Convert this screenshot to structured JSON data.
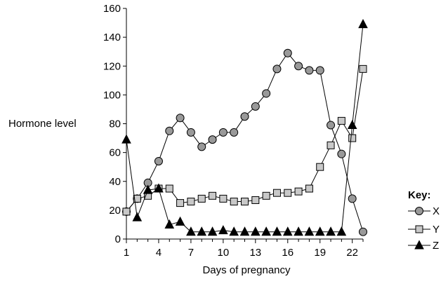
{
  "chart_data": {
    "type": "line",
    "xlabel": "Days of pregnancy",
    "ylabel": "Hormone level",
    "xlim": [
      1,
      23
    ],
    "ylim": [
      0,
      160
    ],
    "xticks": [
      1,
      4,
      7,
      10,
      13,
      16,
      19,
      22
    ],
    "yticks": [
      0,
      20,
      40,
      60,
      80,
      100,
      120,
      140,
      160
    ],
    "grid": false,
    "legend": {
      "title": "Key:",
      "placement": "bottom-right"
    },
    "series": [
      {
        "name": "X",
        "marker": "circle",
        "color": "#999999",
        "x": [
          1,
          2,
          3,
          4,
          5,
          6,
          7,
          8,
          9,
          10,
          11,
          12,
          13,
          14,
          15,
          16,
          17,
          18,
          19,
          20,
          21,
          22,
          23
        ],
        "y": [
          19,
          28,
          39,
          54,
          75,
          84,
          74,
          64,
          69,
          74,
          74,
          85,
          92,
          101,
          118,
          129,
          120,
          117,
          117,
          79,
          59,
          28,
          5
        ]
      },
      {
        "name": "Y",
        "marker": "square",
        "color": "#c8c8c8",
        "x": [
          1,
          2,
          3,
          4,
          5,
          6,
          7,
          8,
          9,
          10,
          11,
          12,
          13,
          14,
          15,
          16,
          17,
          18,
          19,
          20,
          21,
          22,
          23
        ],
        "y": [
          19,
          28,
          30,
          35,
          35,
          25,
          26,
          28,
          30,
          28,
          26,
          26,
          27,
          30,
          32,
          32,
          33,
          35,
          50,
          65,
          82,
          70,
          118
        ]
      },
      {
        "name": "Z",
        "marker": "triangle",
        "color": "#000000",
        "x": [
          1,
          2,
          3,
          4,
          5,
          6,
          7,
          8,
          9,
          10,
          11,
          12,
          13,
          14,
          15,
          16,
          17,
          18,
          19,
          20,
          21,
          22,
          23
        ],
        "y": [
          69,
          15,
          34,
          35,
          10,
          12,
          5,
          5,
          5,
          6,
          5,
          5,
          5,
          5,
          5,
          5,
          5,
          5,
          5,
          5,
          5,
          79,
          149
        ]
      }
    ]
  }
}
